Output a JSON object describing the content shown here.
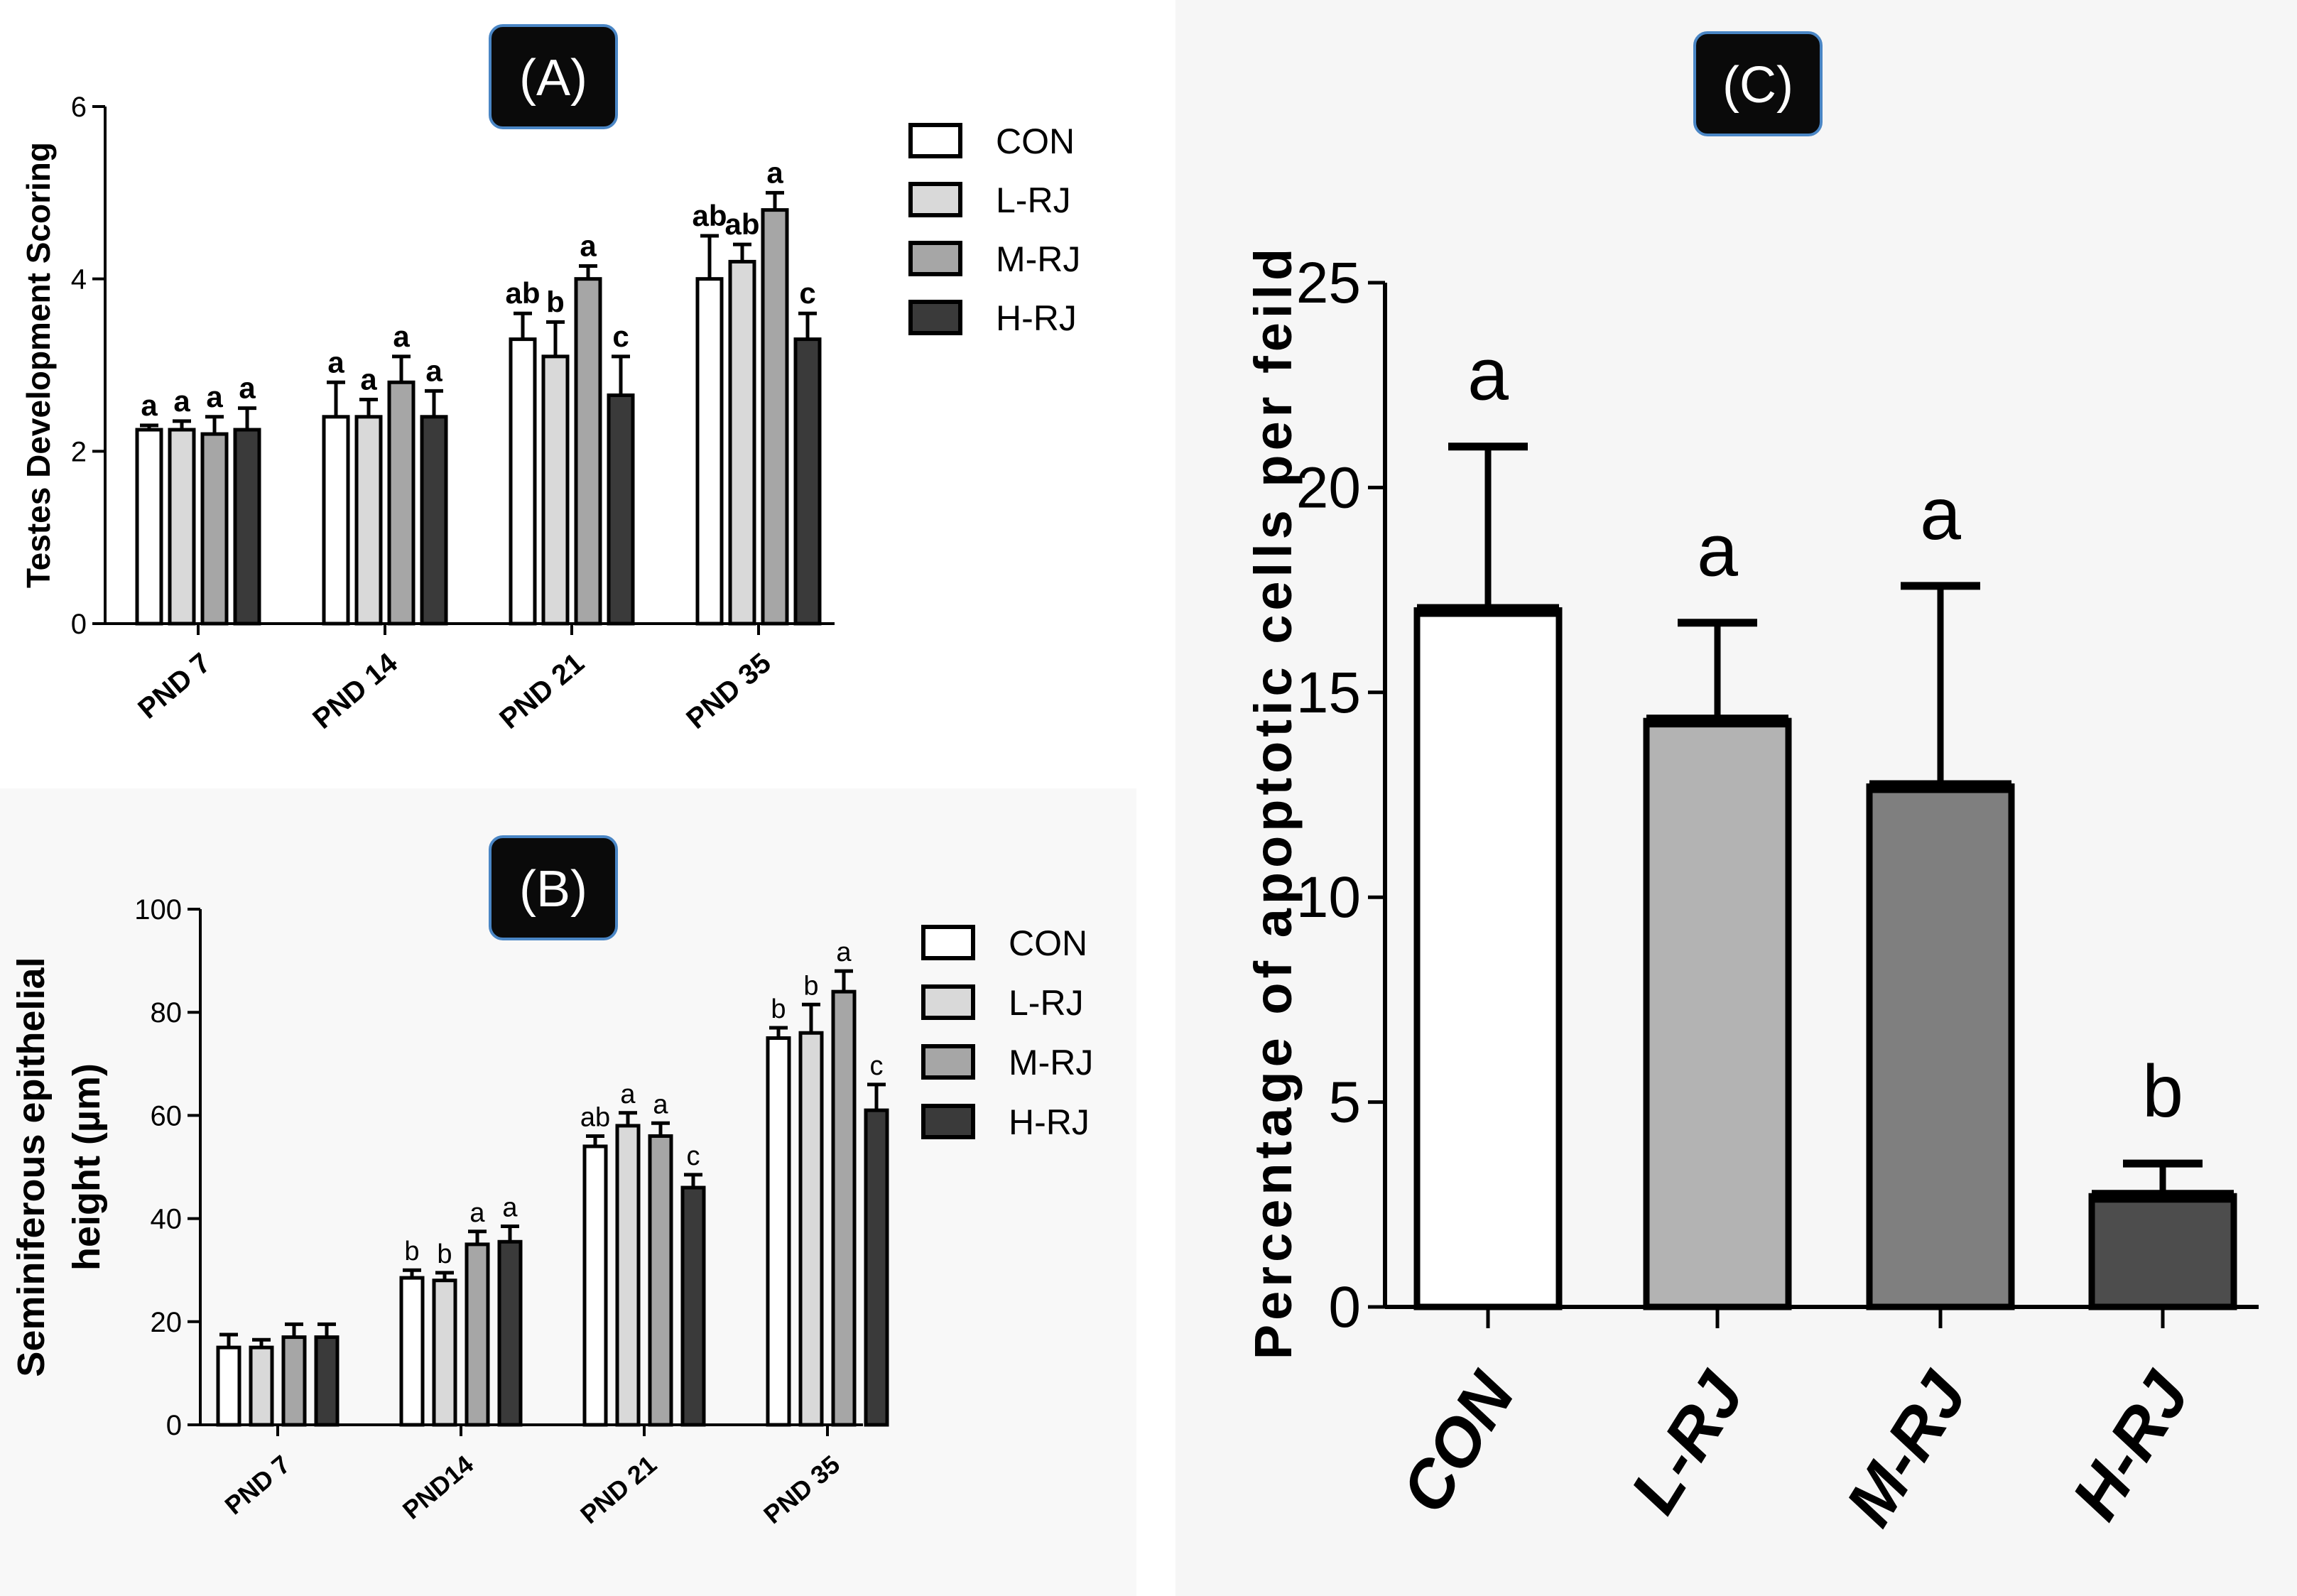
{
  "colors": {
    "CON": "#ffffff",
    "L-RJ": "#d9d9d9",
    "M-RJ": "#a6a6a6",
    "H-RJ": "#3a3a3a",
    "C_CON": "#ffffff",
    "C_L-RJ": "#b3b3b3",
    "C_M-RJ": "#7f7f7f",
    "C_H-RJ": "#4d4d4d",
    "badge_bg": "#0a0a0a",
    "badge_border": "#4a86c5",
    "stroke": "#000000"
  },
  "chart_data": [
    {
      "panel": "(A)",
      "type": "bar",
      "ylabel": "Testes Development Scoring",
      "ylim": [
        0,
        6
      ],
      "yticks": [
        "0",
        "2",
        "4",
        "6"
      ],
      "categories": [
        "PND 7",
        "PND 14",
        "PND 21",
        "PND 35"
      ],
      "legend": [
        "CON",
        "L-RJ",
        "M-RJ",
        "H-RJ"
      ],
      "series": [
        {
          "name": "CON",
          "values": [
            2.25,
            2.4,
            3.3,
            4.0
          ],
          "errors": [
            0.05,
            0.4,
            0.3,
            0.5
          ],
          "labels": [
            "a",
            "a",
            "ab",
            "ab"
          ]
        },
        {
          "name": "L-RJ",
          "values": [
            2.25,
            2.4,
            3.1,
            4.2
          ],
          "errors": [
            0.1,
            0.2,
            0.4,
            0.2
          ],
          "labels": [
            "a",
            "a",
            "b",
            "ab"
          ]
        },
        {
          "name": "M-RJ",
          "values": [
            2.2,
            2.8,
            4.0,
            4.8
          ],
          "errors": [
            0.2,
            0.3,
            0.15,
            0.2
          ],
          "labels": [
            "a",
            "a",
            "a",
            "a"
          ]
        },
        {
          "name": "H-RJ",
          "values": [
            2.25,
            2.4,
            2.65,
            3.3
          ],
          "errors": [
            0.25,
            0.3,
            0.45,
            0.3
          ],
          "labels": [
            "a",
            "a",
            "c",
            "c"
          ]
        }
      ]
    },
    {
      "panel": "(B)",
      "type": "bar",
      "ylabel": "Seminiferous epithelial height (µm)",
      "ylabel_lines": [
        "Seminiferous epithelial",
        "height (µm)"
      ],
      "ylim": [
        0,
        100
      ],
      "yticks": [
        "0",
        "20",
        "40",
        "60",
        "80",
        "100"
      ],
      "categories": [
        "PND 7",
        "PND14",
        "PND 21",
        "PND 35"
      ],
      "legend": [
        "CON",
        "L-RJ",
        "M-RJ",
        "H-RJ"
      ],
      "series": [
        {
          "name": "CON",
          "values": [
            15,
            28.5,
            54,
            75
          ],
          "errors": [
            2.5,
            1.5,
            2.0,
            2.0
          ],
          "labels": [
            "",
            "b",
            "ab",
            "b"
          ]
        },
        {
          "name": "L-RJ",
          "values": [
            15,
            28,
            58,
            76
          ],
          "errors": [
            1.5,
            1.5,
            2.5,
            5.5
          ],
          "labels": [
            "",
            "b",
            "a",
            "b"
          ]
        },
        {
          "name": "M-RJ",
          "values": [
            17,
            35,
            56,
            84
          ],
          "errors": [
            2.5,
            2.5,
            2.5,
            4.0
          ],
          "labels": [
            "",
            "a",
            "a",
            "a"
          ]
        },
        {
          "name": "H-RJ",
          "values": [
            17,
            35.5,
            46,
            61
          ],
          "errors": [
            2.5,
            3.0,
            2.5,
            5.0
          ],
          "labels": [
            "",
            "a",
            "c",
            "c"
          ]
        }
      ]
    },
    {
      "panel": "(C)",
      "type": "bar",
      "ylabel": "Percentage of apoptotic cells per feild",
      "ylim": [
        0,
        25
      ],
      "yticks": [
        "0",
        "5",
        "10",
        "15",
        "20",
        "25"
      ],
      "categories": [
        "CON",
        "L-RJ",
        "M-RJ",
        "H-RJ"
      ],
      "values": [
        17,
        14.3,
        12.7,
        2.7
      ],
      "errors": [
        4.0,
        2.4,
        4.9,
        0.8
      ],
      "labels": [
        "a",
        "a",
        "a",
        "b"
      ]
    }
  ]
}
